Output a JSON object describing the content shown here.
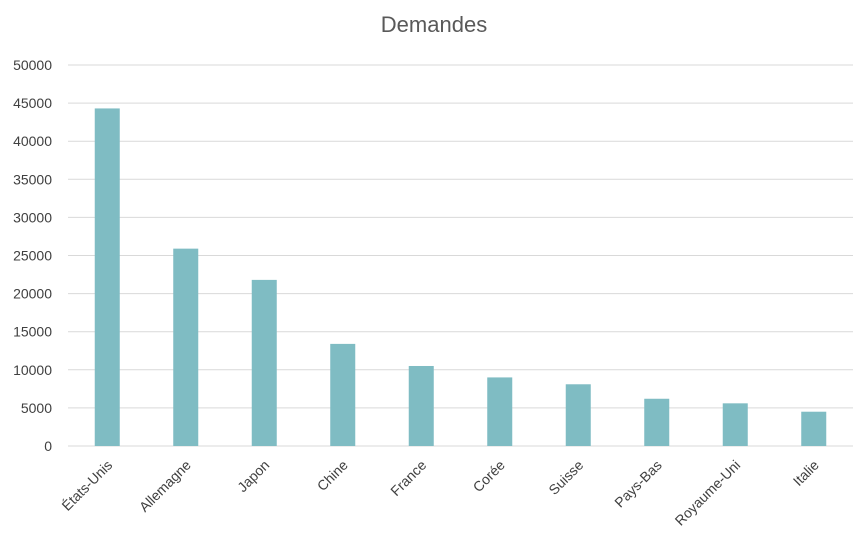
{
  "chart_data": {
    "type": "bar",
    "title": "Demandes",
    "xlabel": "",
    "ylabel": "",
    "categories": [
      "États-Unis",
      "Allemagne",
      "Japon",
      "Chine",
      "France",
      "Corée",
      "Suisse",
      "Pays-Bas",
      "Royaume-Uni",
      "Italie"
    ],
    "values": [
      44300,
      25900,
      21800,
      13400,
      10500,
      9000,
      8100,
      6200,
      5600,
      4500
    ],
    "ylim": [
      0,
      50000
    ],
    "yticks": [
      0,
      5000,
      10000,
      15000,
      20000,
      25000,
      30000,
      35000,
      40000,
      45000,
      50000
    ],
    "grid": true,
    "legend": "none",
    "bar_color": "#7fbcc3"
  }
}
